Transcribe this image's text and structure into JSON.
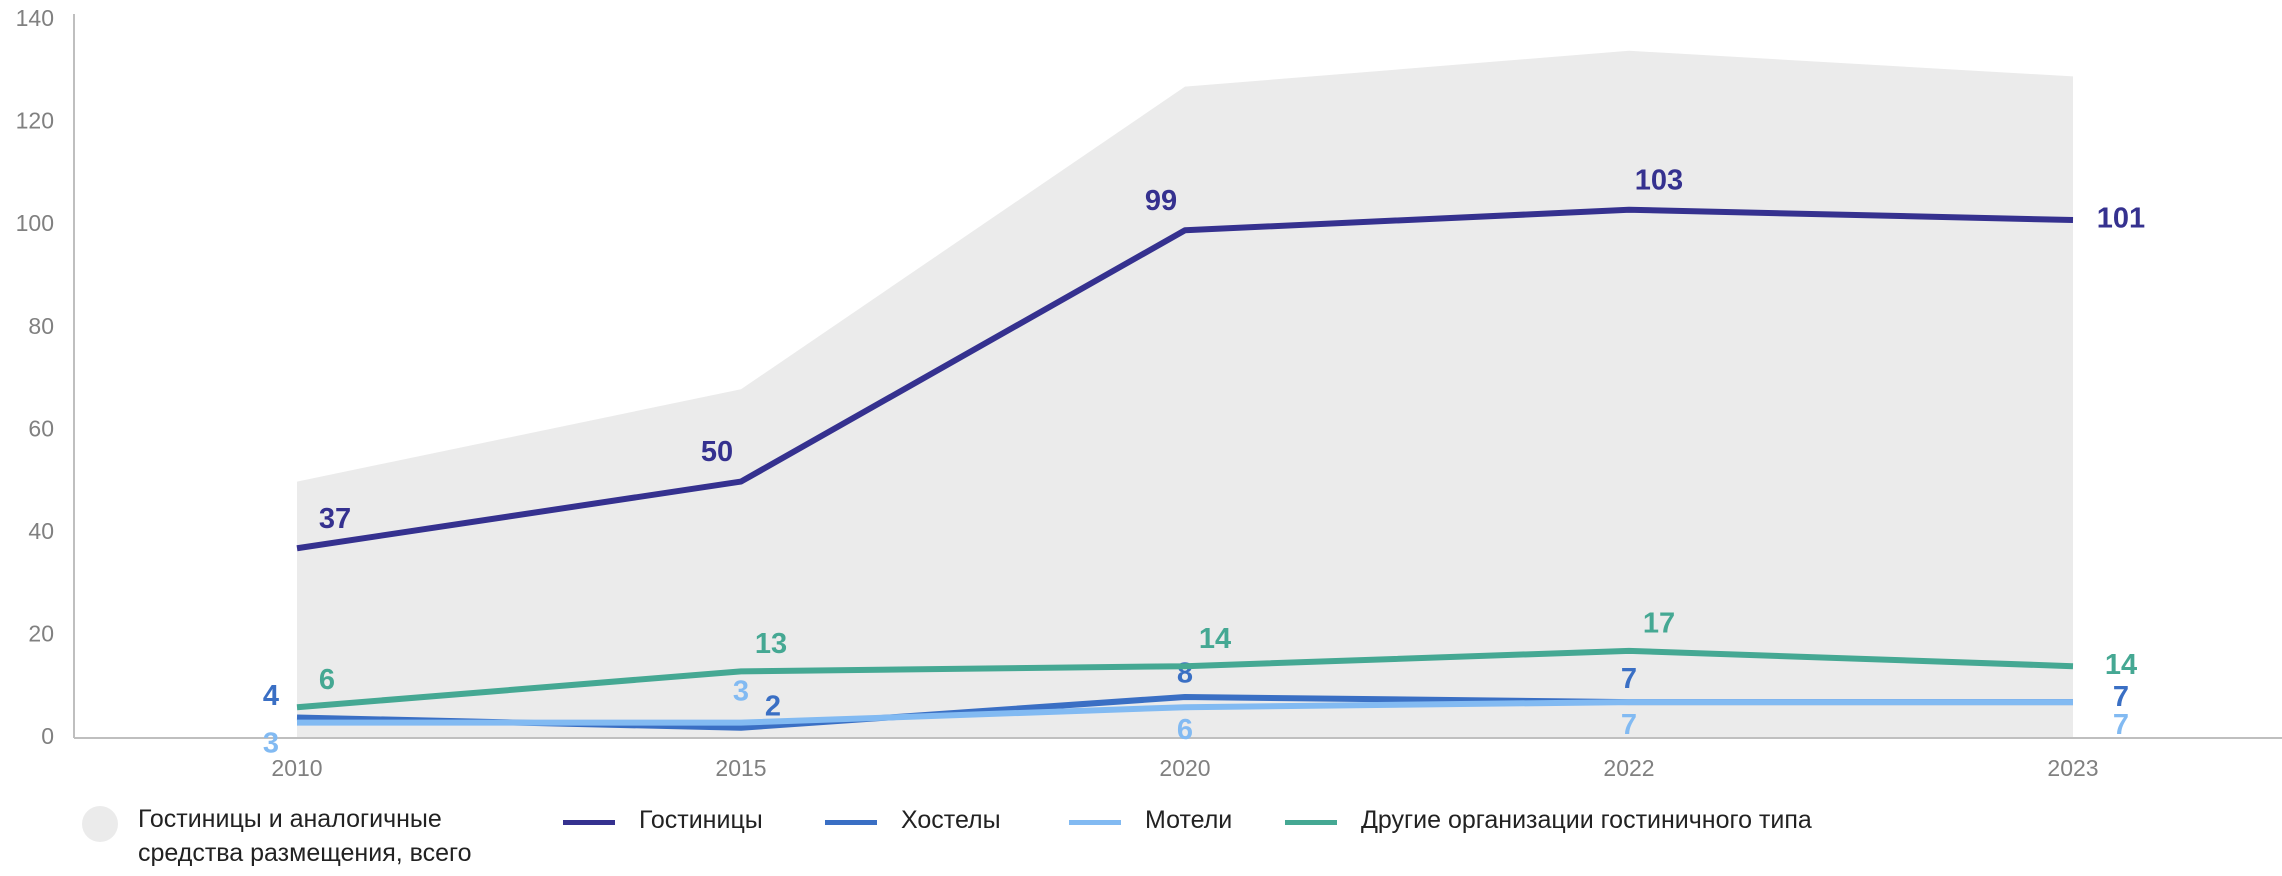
{
  "chart_data": {
    "type": "line",
    "categories": [
      "2010",
      "2015",
      "2020",
      "2022",
      "2023"
    ],
    "area": {
      "name": "Гостиницы и аналогичные средства размещения, всего",
      "color": "#ebebeb",
      "values": [
        50,
        68,
        127,
        134,
        129
      ]
    },
    "series": [
      {
        "name": "Гостиницы",
        "color": "#35318f",
        "values": [
          37,
          50,
          99,
          103,
          101
        ]
      },
      {
        "name": "Хостелы",
        "color": "#3a6fc4",
        "values": [
          4,
          2,
          8,
          7,
          7
        ]
      },
      {
        "name": "Мотели",
        "color": "#82baf2",
        "values": [
          3,
          3,
          6,
          7,
          7
        ]
      },
      {
        "name": "Другие организации гостиничного типа",
        "color": "#45a893",
        "values": [
          6,
          13,
          14,
          17,
          14
        ]
      }
    ],
    "ylim": [
      0,
      140
    ],
    "yticks": [
      0,
      20,
      40,
      60,
      80,
      100,
      120,
      140
    ],
    "grid": false,
    "legend": "bottom"
  }
}
